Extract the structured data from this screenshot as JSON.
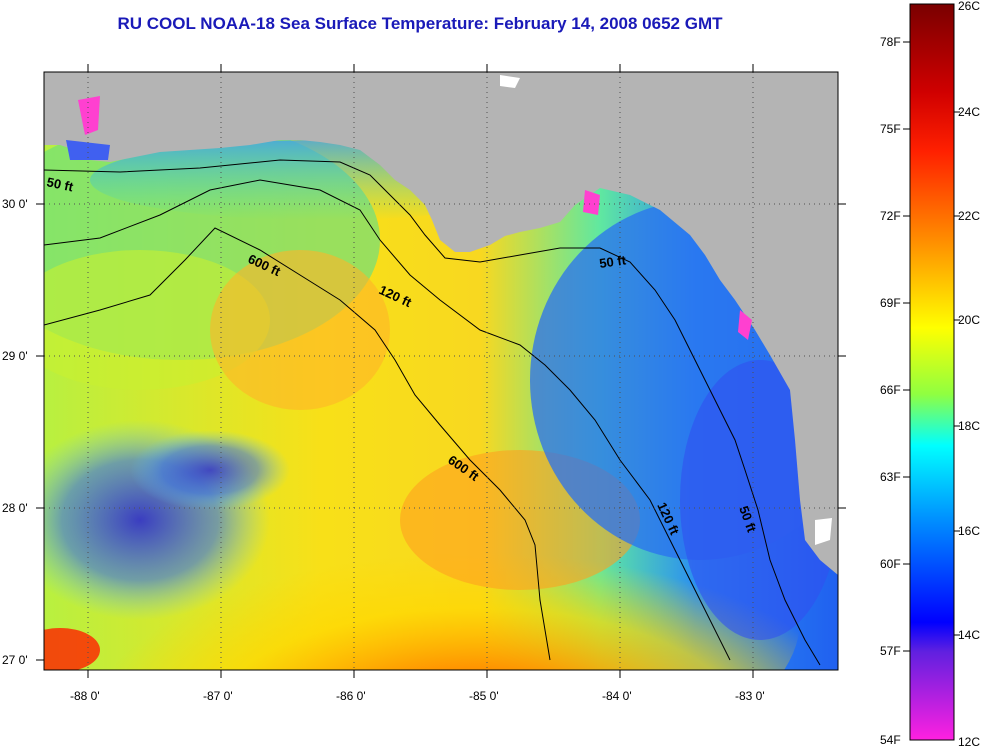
{
  "title": "RU COOL  NOAA-18  Sea Surface Temperature:  February 14, 2008 0652 GMT",
  "map": {
    "lat_labels": [
      "30 0'",
      "29 0'",
      "28 0'",
      "27 0'"
    ],
    "lon_labels": [
      "-88 0'",
      "-87 0'",
      "-86 0'",
      "-85 0'",
      "-84 0'",
      "-83 0'"
    ],
    "contours": [
      "50 ft",
      "600 ft",
      "120 ft",
      "50 ft",
      "600 ft",
      "120 ft",
      "50 ft"
    ],
    "colors": {
      "land": "#b4b4b4",
      "cold": "#1e5af0",
      "warm": "#ff3c00",
      "mid": "#f0ff00"
    }
  },
  "colorbar": {
    "fahrenheit": [
      "78F",
      "75F",
      "72F",
      "69F",
      "66F",
      "63F",
      "60F",
      "57F",
      "54F"
    ],
    "celsius": [
      "26C",
      "24C",
      "22C",
      "20C",
      "18C",
      "16C",
      "14C",
      "12C"
    ],
    "stops": [
      "#8a0000",
      "#ff0000",
      "#ff8c00",
      "#ffff00",
      "#00ffff",
      "#0050ff",
      "#0000ff",
      "#ff30e0"
    ]
  }
}
